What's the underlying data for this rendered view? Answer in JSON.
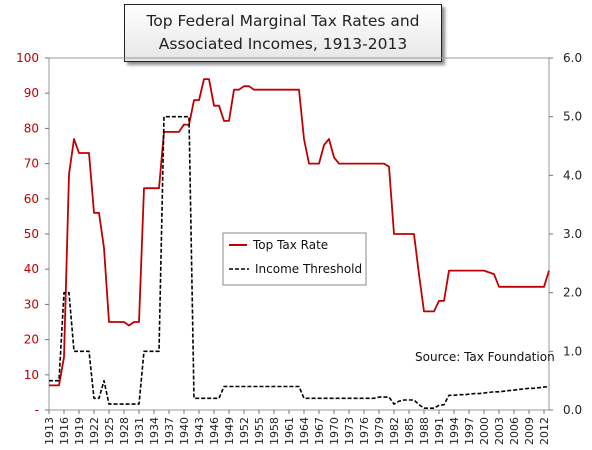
{
  "chart_data": {
    "type": "line",
    "title_line1": "Top Federal Marginal Tax Rates and",
    "title_line2": "Associated Incomes,  1913-2013",
    "source": "Source: Tax Foundation",
    "x_range": [
      1913,
      2013
    ],
    "y_left_range": [
      0,
      100
    ],
    "y_right_range": [
      0.0,
      6.0
    ],
    "y_left_ticks": [
      "-",
      "10",
      "20",
      "30",
      "40",
      "50",
      "60",
      "70",
      "80",
      "90",
      "100"
    ],
    "y_right_ticks": [
      "0.0",
      "1.0",
      "2.0",
      "3.0",
      "4.0",
      "5.0",
      "6.0"
    ],
    "x_ticks": [
      "1913",
      "1916",
      "1919",
      "1922",
      "1925",
      "1928",
      "1931",
      "1934",
      "1937",
      "1940",
      "1943",
      "1946",
      "1949",
      "1952",
      "1955",
      "1958",
      "1961",
      "1964",
      "1967",
      "1970",
      "1973",
      "1976",
      "1979",
      "1982",
      "1985",
      "1988",
      "1991",
      "1994",
      "1997",
      "2000",
      "2003",
      "2006",
      "2009",
      "2012"
    ],
    "legend": "center",
    "series": [
      {
        "name": "Top Tax Rate",
        "axis": "left",
        "color": "#c00000",
        "style": "solid",
        "x": [
          1913,
          1915,
          1916,
          1917,
          1918,
          1919,
          1920,
          1921,
          1922,
          1923,
          1924,
          1925,
          1926,
          1927,
          1928,
          1929,
          1930,
          1931,
          1932,
          1933,
          1934,
          1935,
          1936,
          1937,
          1938,
          1939,
          1940,
          1941,
          1942,
          1943,
          1944,
          1945,
          1946,
          1947,
          1948,
          1949,
          1950,
          1951,
          1952,
          1953,
          1954,
          1955,
          1956,
          1957,
          1958,
          1959,
          1960,
          1961,
          1962,
          1963,
          1964,
          1965,
          1966,
          1967,
          1968,
          1969,
          1970,
          1971,
          1972,
          1973,
          1974,
          1975,
          1976,
          1977,
          1978,
          1979,
          1980,
          1981,
          1982,
          1983,
          1984,
          1985,
          1986,
          1987,
          1988,
          1989,
          1990,
          1991,
          1992,
          1993,
          1994,
          1995,
          1996,
          1997,
          1998,
          1999,
          2000,
          2001,
          2002,
          2003,
          2004,
          2005,
          2006,
          2007,
          2008,
          2009,
          2010,
          2011,
          2012,
          2013
        ],
        "y": [
          7,
          7,
          15,
          67,
          77,
          73,
          73,
          73,
          56,
          56,
          46,
          25,
          25,
          25,
          25,
          24,
          25,
          25,
          63,
          63,
          63,
          63,
          79,
          79,
          79,
          79,
          81.1,
          81,
          88,
          88,
          94,
          94,
          86.45,
          86.45,
          82.13,
          82.13,
          91,
          91,
          92,
          92,
          91,
          91,
          91,
          91,
          91,
          91,
          91,
          91,
          91,
          91,
          77,
          70,
          70,
          70,
          75.25,
          77,
          71.75,
          70,
          70,
          70,
          70,
          70,
          70,
          70,
          70,
          70,
          70,
          69.13,
          50,
          50,
          50,
          50,
          50,
          38.5,
          28,
          28,
          28,
          31,
          31,
          39.6,
          39.6,
          39.6,
          39.6,
          39.6,
          39.6,
          39.6,
          39.6,
          39.1,
          38.6,
          35,
          35,
          35,
          35,
          35,
          35,
          35,
          35,
          35,
          35,
          39.6
        ]
      },
      {
        "name": "Income Threshold",
        "axis": "right",
        "color": "#000000",
        "style": "dashed",
        "x": [
          1913,
          1915,
          1916,
          1917,
          1918,
          1919,
          1920,
          1921,
          1922,
          1923,
          1924,
          1925,
          1926,
          1927,
          1928,
          1929,
          1930,
          1931,
          1932,
          1933,
          1934,
          1935,
          1936,
          1937,
          1938,
          1939,
          1940,
          1941,
          1942,
          1943,
          1944,
          1945,
          1946,
          1947,
          1948,
          1949,
          1950,
          1951,
          1952,
          1953,
          1954,
          1955,
          1956,
          1957,
          1958,
          1959,
          1960,
          1961,
          1962,
          1963,
          1964,
          1965,
          1966,
          1967,
          1968,
          1969,
          1970,
          1971,
          1972,
          1973,
          1974,
          1975,
          1976,
          1977,
          1978,
          1979,
          1980,
          1981,
          1982,
          1983,
          1984,
          1985,
          1986,
          1987,
          1988,
          1989,
          1990,
          1991,
          1992,
          1993,
          1994,
          1995,
          1996,
          1997,
          1998,
          1999,
          2000,
          2001,
          2002,
          2003,
          2004,
          2005,
          2006,
          2007,
          2008,
          2009,
          2010,
          2011,
          2012,
          2013
        ],
        "y": [
          0.5,
          0.5,
          2.0,
          2.0,
          1.0,
          1.0,
          1.0,
          1.0,
          0.2,
          0.2,
          0.5,
          0.1,
          0.1,
          0.1,
          0.1,
          0.1,
          0.1,
          0.1,
          1.0,
          1.0,
          1.0,
          1.0,
          5.0,
          5.0,
          5.0,
          5.0,
          5.0,
          5.0,
          0.2,
          0.2,
          0.2,
          0.2,
          0.2,
          0.2,
          0.4,
          0.4,
          0.4,
          0.4,
          0.4,
          0.4,
          0.4,
          0.4,
          0.4,
          0.4,
          0.4,
          0.4,
          0.4,
          0.4,
          0.4,
          0.4,
          0.2,
          0.2,
          0.2,
          0.2,
          0.2,
          0.2,
          0.2,
          0.2,
          0.2,
          0.2,
          0.2,
          0.2,
          0.2,
          0.2,
          0.2,
          0.22,
          0.22,
          0.22,
          0.1,
          0.15,
          0.17,
          0.17,
          0.17,
          0.09,
          0.03,
          0.03,
          0.03,
          0.08,
          0.09,
          0.25,
          0.25,
          0.26,
          0.26,
          0.27,
          0.28,
          0.28,
          0.29,
          0.3,
          0.31,
          0.31,
          0.32,
          0.33,
          0.34,
          0.35,
          0.36,
          0.37,
          0.37,
          0.38,
          0.39,
          0.4
        ]
      }
    ]
  }
}
